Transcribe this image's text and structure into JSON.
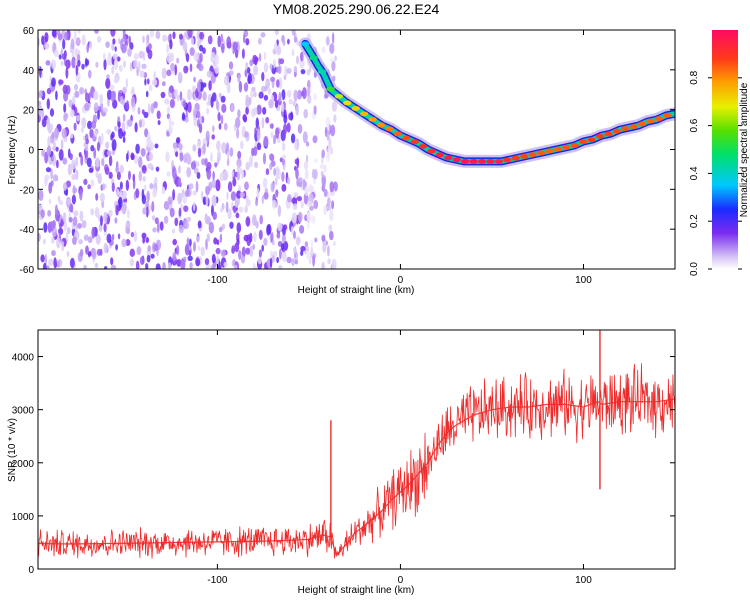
{
  "figure_title": "YM08.2025.290.06.22.E24",
  "chart_data": [
    {
      "type": "heatmap",
      "title": "YM08.2025.290.06.22.E24",
      "xlabel": "Height of straight line (km)",
      "ylabel": "Frequency (Hz)",
      "xlim": [
        -198,
        150
      ],
      "ylim": [
        -60,
        60
      ],
      "xticks": [
        -100,
        0,
        100
      ],
      "yticks": [
        -60,
        -40,
        -20,
        0,
        20,
        40,
        60
      ],
      "grid": false,
      "noise_region_x": [
        -198,
        -35
      ],
      "noise_gap_x": [
        -46,
        -43
      ],
      "doppler_trace": {
        "x": [
          -52,
          -48,
          -45,
          -42,
          -38,
          -34,
          -30,
          -25,
          -20,
          -15,
          -10,
          -5,
          0,
          5,
          10,
          15,
          20,
          25,
          30,
          35,
          40,
          45,
          50,
          55,
          60,
          65,
          70,
          75,
          80,
          85,
          90,
          95,
          100,
          105,
          110,
          115,
          120,
          125,
          130,
          135,
          140,
          145,
          150
        ],
        "y": [
          53,
          47,
          42,
          38,
          30,
          27,
          24,
          21,
          18,
          15,
          12,
          10,
          7,
          5,
          3,
          0,
          -2,
          -4,
          -5,
          -6,
          -6,
          -6,
          -6,
          -6,
          -5,
          -4,
          -3,
          -2,
          -1,
          0,
          1,
          2,
          4,
          5,
          7,
          8,
          10,
          11,
          12,
          14,
          15,
          17,
          18
        ],
        "amplitude": [
          0.35,
          0.45,
          0.5,
          0.4,
          0.55,
          0.65,
          0.7,
          0.72,
          0.75,
          0.78,
          0.8,
          0.82,
          0.85,
          0.87,
          0.9,
          0.92,
          0.93,
          0.95,
          0.96,
          0.97,
          0.97,
          0.96,
          0.95,
          0.93,
          0.9,
          0.88,
          0.86,
          0.85,
          0.84,
          0.84,
          0.85,
          0.86,
          0.87,
          0.88,
          0.88,
          0.87,
          0.86,
          0.85,
          0.85,
          0.84,
          0.84,
          0.85,
          0.85
        ]
      },
      "colorbar": {
        "label": "Normalized spectral amplitude",
        "range": [
          0,
          1
        ],
        "ticks": [
          "0.0",
          "0.2",
          "0.4",
          "0.6",
          "0.8"
        ]
      }
    },
    {
      "type": "line",
      "title": "",
      "xlabel": "Height of straight line (km)",
      "ylabel": "SNR (10 * v/v)",
      "xlim": [
        -198,
        150
      ],
      "ylim": [
        0,
        4500
      ],
      "xticks": [
        -100,
        0,
        100
      ],
      "yticks": [
        0,
        1000,
        2000,
        3000,
        4000
      ],
      "grid": false,
      "color": "#ee2a2a",
      "series": [
        {
          "name": "SNR",
          "x": [
            -198,
            -180,
            -160,
            -140,
            -120,
            -100,
            -80,
            -60,
            -50,
            -42,
            -38,
            -35,
            -32,
            -28,
            -25,
            -20,
            -15,
            -10,
            -5,
            0,
            5,
            10,
            15,
            20,
            25,
            30,
            35,
            40,
            50,
            60,
            70,
            80,
            90,
            100,
            108,
            110,
            120,
            130,
            140,
            150
          ],
          "y": [
            480,
            470,
            480,
            490,
            500,
            510,
            520,
            540,
            560,
            640,
            600,
            250,
            380,
            520,
            680,
            800,
            950,
            1100,
            1300,
            1450,
            1600,
            1800,
            2000,
            2300,
            2550,
            2700,
            2800,
            2900,
            3000,
            3050,
            3050,
            3100,
            3100,
            3050,
            3150,
            3100,
            3150,
            3150,
            3150,
            3200
          ]
        }
      ],
      "spikes": [
        {
          "x": -38,
          "value": 2800
        },
        {
          "x": 109,
          "value": 4500
        },
        {
          "x": 109,
          "value": 1500
        }
      ]
    }
  ]
}
